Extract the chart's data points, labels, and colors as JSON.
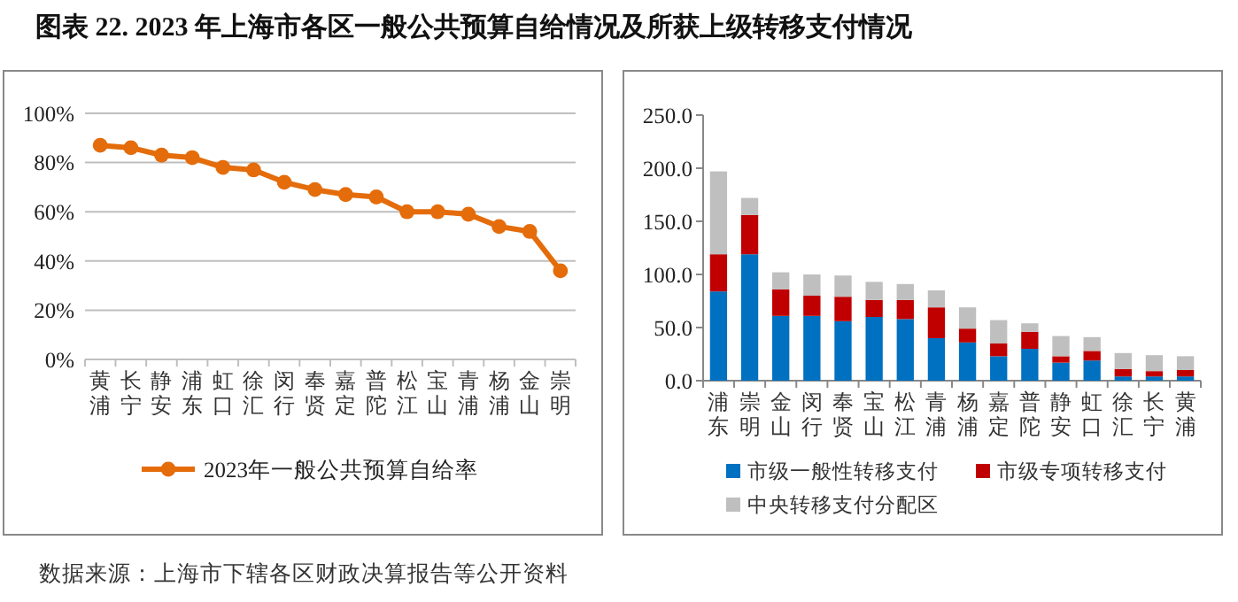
{
  "chart_data": [
    {
      "type": "line",
      "title": "图表 22.  2023 年上海市各区一般公共预算自给情况及所获上级转移支付情况",
      "annotations": [
        "数据来源：上海市下辖各区财政决算报告等公开资料"
      ],
      "categories": [
        "黄浦",
        "长宁",
        "静安",
        "浦东",
        "虹口",
        "徐汇",
        "闵行",
        "奉贤",
        "嘉定",
        "普陀",
        "松江",
        "宝山",
        "青浦",
        "杨浦",
        "金山",
        "崇明"
      ],
      "series": [
        {
          "name": "2023年一般公共预算自给率",
          "color": "#e46c0a",
          "values": [
            87,
            86,
            83,
            82,
            78,
            77,
            72,
            69,
            67,
            66,
            60,
            60,
            59,
            54,
            52,
            36
          ]
        }
      ],
      "ylim": [
        0,
        100
      ],
      "yticks": [
        {
          "value": 0,
          "label": "0%"
        },
        {
          "value": 20,
          "label": "20%"
        },
        {
          "value": 40,
          "label": "40%"
        },
        {
          "value": 60,
          "label": "60%"
        },
        {
          "value": 80,
          "label": "80%"
        },
        {
          "value": 100,
          "label": "100%"
        }
      ],
      "grid": "y",
      "legend": "bottom",
      "marker": "circle",
      "line_style": "solid"
    },
    {
      "type": "bar",
      "stacked": true,
      "categories": [
        "浦东",
        "崇明",
        "金山",
        "闵行",
        "奉贤",
        "宝山",
        "松江",
        "青浦",
        "杨浦",
        "嘉定",
        "普陀",
        "静安",
        "虹口",
        "徐汇",
        "长宁",
        "黄浦"
      ],
      "series": [
        {
          "name": "市级一般性转移支付",
          "color": "#0070c0",
          "values": [
            84,
            119,
            61,
            61,
            56,
            60,
            58,
            40,
            36,
            23,
            30,
            17,
            19,
            4,
            4,
            4
          ]
        },
        {
          "name": "市级专项转移支付",
          "color": "#c00000",
          "values": [
            35,
            37,
            25,
            19,
            23,
            16,
            18,
            29,
            13,
            12,
            16,
            6,
            9,
            7,
            5,
            6
          ]
        },
        {
          "name": "中央转移支付分配区",
          "color": "#bfbfbf",
          "values": [
            78,
            16,
            16,
            20,
            20,
            17,
            15,
            16,
            20,
            22,
            8,
            19,
            13,
            15,
            15,
            13
          ]
        }
      ],
      "ylim": [
        0,
        250
      ],
      "yticks": [
        {
          "value": 0,
          "label": "0.0"
        },
        {
          "value": 50,
          "label": "50.0"
        },
        {
          "value": 100,
          "label": "100.0"
        },
        {
          "value": 150,
          "label": "150.0"
        },
        {
          "value": 200,
          "label": "200.0"
        },
        {
          "value": 250,
          "label": "250.0"
        }
      ],
      "grid": false,
      "legend": "bottom"
    }
  ]
}
